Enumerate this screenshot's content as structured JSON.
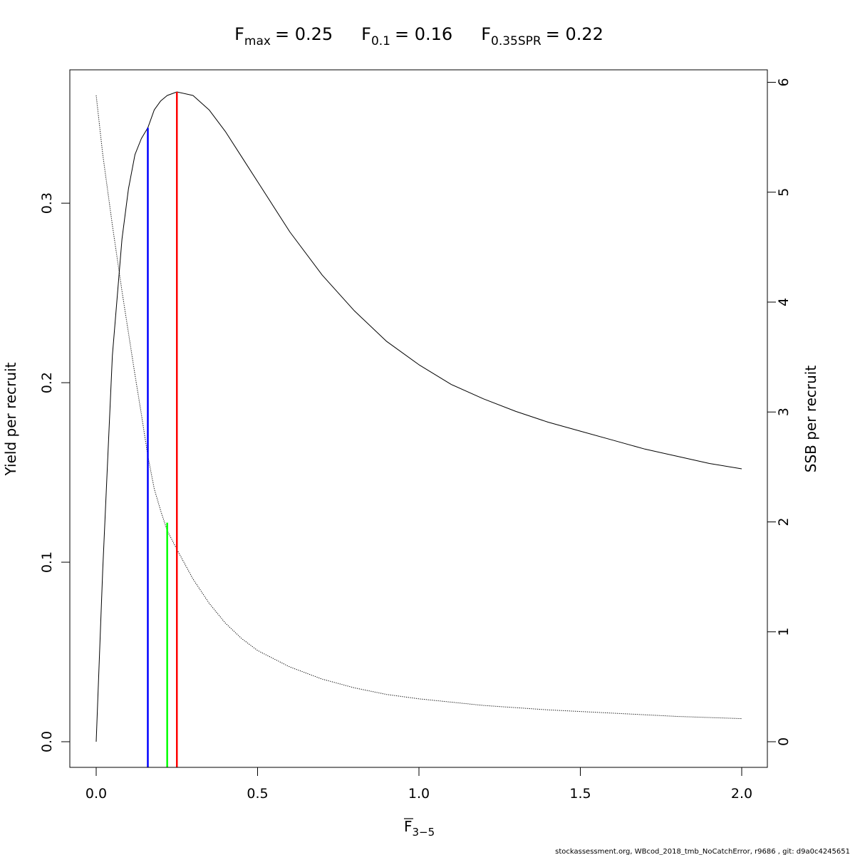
{
  "title": {
    "fmax": {
      "main": "F",
      "sub": "max",
      "value": "= 0.25"
    },
    "f01": {
      "main": "F",
      "sub": "0.1",
      "value": "= 0.16"
    },
    "fspr": {
      "main": "F",
      "sub": "0.35SPR",
      "value": "= 0.22"
    }
  },
  "footer": "stockassessment.org, WBcod_2018_tmb_NoCatchError, r9686 , git: d9a0c4245651",
  "chart_data": {
    "type": "line",
    "xlabel": {
      "main": "F",
      "sub": "3−5",
      "overline": true
    },
    "ylabel": "Yield per recruit",
    "y2label": "SSB per recruit",
    "xlim": [
      0,
      2
    ],
    "ylim": [
      0,
      0.36
    ],
    "y2lim": [
      0,
      5.88
    ],
    "x_ticks": [
      "0.0",
      "0.5",
      "1.0",
      "1.5",
      "2.0"
    ],
    "y_ticks": [
      "0.0",
      "0.1",
      "0.2",
      "0.3"
    ],
    "y2_ticks": [
      "0",
      "1",
      "2",
      "3",
      "4",
      "5",
      "6"
    ],
    "grid": false,
    "series": [
      {
        "name": "Yield per recruit",
        "axis": "left",
        "style": "solid",
        "color": "#000000",
        "x": [
          0,
          0.02,
          0.05,
          0.08,
          0.1,
          0.12,
          0.14,
          0.16,
          0.18,
          0.2,
          0.22,
          0.25,
          0.3,
          0.35,
          0.4,
          0.45,
          0.5,
          0.6,
          0.7,
          0.8,
          0.9,
          1.0,
          1.1,
          1.2,
          1.3,
          1.4,
          1.5,
          1.6,
          1.7,
          1.8,
          1.9,
          2.0
        ],
        "y": [
          0,
          0.095,
          0.215,
          0.28,
          0.308,
          0.327,
          0.336,
          0.342,
          0.352,
          0.357,
          0.36,
          0.362,
          0.36,
          0.352,
          0.34,
          0.326,
          0.312,
          0.284,
          0.26,
          0.24,
          0.223,
          0.21,
          0.199,
          0.191,
          0.184,
          0.178,
          0.173,
          0.168,
          0.163,
          0.159,
          0.155,
          0.152
        ]
      },
      {
        "name": "SSB per recruit",
        "axis": "right",
        "style": "dotted",
        "color": "#000000",
        "x": [
          0,
          0.02,
          0.05,
          0.08,
          0.1,
          0.12,
          0.14,
          0.16,
          0.18,
          0.2,
          0.22,
          0.25,
          0.3,
          0.35,
          0.4,
          0.45,
          0.5,
          0.6,
          0.7,
          0.8,
          0.9,
          1.0,
          1.2,
          1.4,
          1.6,
          1.8,
          2.0
        ],
        "y": [
          5.88,
          5.35,
          4.7,
          4.1,
          3.72,
          3.34,
          2.98,
          2.6,
          2.3,
          2.1,
          1.92,
          1.75,
          1.48,
          1.26,
          1.08,
          0.94,
          0.83,
          0.68,
          0.57,
          0.49,
          0.43,
          0.39,
          0.33,
          0.29,
          0.26,
          0.23,
          0.21
        ]
      }
    ],
    "reference_lines": [
      {
        "name": "F0.1",
        "x": 0.16,
        "y_top": 0.342,
        "color": "#0000ff"
      },
      {
        "name": "F0.35SPR",
        "x": 0.22,
        "y_top": 0.122,
        "color": "#00ff00"
      },
      {
        "name": "Fmax",
        "x": 0.25,
        "y_top": 0.362,
        "color": "#ff0000"
      }
    ]
  }
}
